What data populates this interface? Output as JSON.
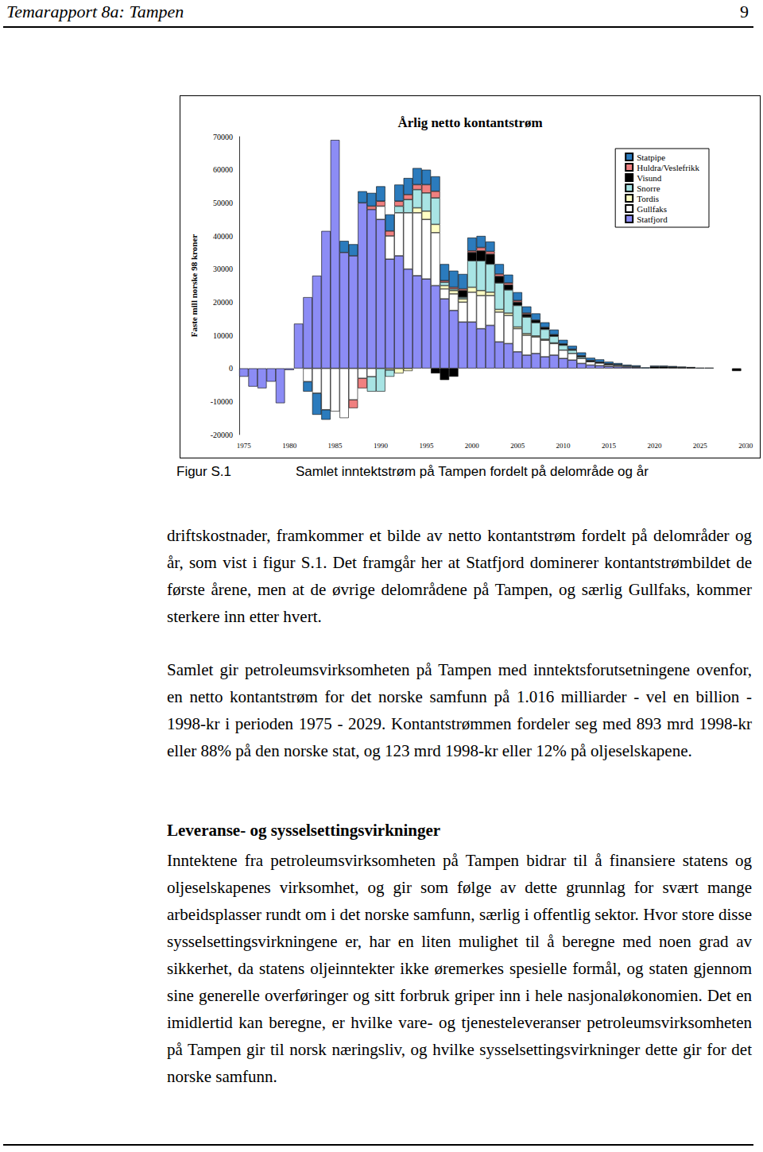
{
  "header": {
    "title": "Temarapport 8a: Tampen",
    "page": "9"
  },
  "chart_data": {
    "type": "bar",
    "title": "Årlig netto kontantstrøm",
    "ylabel": "Faste mill norske 98 kroner",
    "stacked": true,
    "grid": false,
    "legend": "top-right",
    "ylim": [
      -20000,
      70000
    ],
    "yticks": [
      -20000,
      -10000,
      0,
      10000,
      20000,
      30000,
      40000,
      50000,
      60000,
      70000
    ],
    "categories": [
      "1975",
      null,
      null,
      null,
      null,
      "1980",
      null,
      null,
      null,
      null,
      "1985",
      null,
      null,
      null,
      null,
      "1990",
      null,
      null,
      null,
      null,
      "1995",
      null,
      null,
      null,
      null,
      "2000",
      null,
      null,
      null,
      null,
      "2005",
      null,
      null,
      null,
      null,
      "2010",
      null,
      null,
      null,
      null,
      "2015",
      null,
      null,
      null,
      null,
      "2020",
      null,
      null,
      null,
      null,
      "2025",
      null,
      null,
      null,
      null,
      "2030"
    ],
    "series": [
      {
        "name": "Statpipe",
        "color": "#2b7bbd",
        "values": [
          null,
          null,
          null,
          null,
          null,
          null,
          null,
          -3000,
          -6500,
          -3000,
          null,
          3500,
          3500,
          3500,
          4000,
          4500,
          5000,
          5000,
          5000,
          5000,
          4500,
          4500,
          5000,
          5000,
          4500,
          4000,
          3500,
          3000,
          3000,
          2500,
          2500,
          2000,
          2000,
          1500,
          1500,
          1200,
          1000,
          1000,
          800,
          800,
          600,
          500,
          400,
          400,
          300,
          300,
          300,
          300,
          200,
          200,
          200,
          200,
          null,
          null,
          null,
          null
        ]
      },
      {
        "name": "Huldra/Veslefrikk",
        "color": "#f08080",
        "values": [
          null,
          null,
          null,
          null,
          null,
          null,
          null,
          null,
          null,
          null,
          null,
          null,
          -2500,
          -3000,
          1000,
          1500,
          1500,
          1500,
          1500,
          1500,
          2500,
          2000,
          500,
          500,
          500,
          500,
          1000,
          800,
          700,
          600,
          500,
          400,
          null,
          null,
          null,
          null,
          null,
          null,
          null,
          null,
          null,
          null,
          null,
          null,
          null,
          null,
          null,
          null,
          null,
          null,
          null,
          null,
          null,
          null,
          null,
          null
        ]
      },
      {
        "name": "Visund",
        "color": "#000000",
        "values": [
          null,
          null,
          null,
          null,
          null,
          null,
          null,
          null,
          null,
          null,
          null,
          null,
          null,
          null,
          null,
          null,
          null,
          null,
          null,
          null,
          null,
          -1500,
          -3500,
          -2500,
          2000,
          2500,
          3000,
          3000,
          2000,
          1500,
          1000,
          800,
          800,
          600,
          500,
          400,
          300,
          300,
          400,
          300,
          300,
          200,
          null,
          null,
          null,
          500,
          500,
          400,
          300,
          200,
          null,
          null,
          null,
          null,
          -800,
          null
        ]
      },
      {
        "name": "Snorre",
        "color": "#a8e4e4",
        "values": [
          null,
          null,
          null,
          null,
          null,
          null,
          null,
          null,
          null,
          null,
          null,
          null,
          null,
          null,
          -4500,
          -7000,
          -2000,
          2000,
          4000,
          5500,
          5500,
          8000,
          1000,
          500,
          500,
          8000,
          9000,
          8500,
          8000,
          7000,
          6500,
          5000,
          4000,
          3000,
          2000,
          1500,
          1000,
          500,
          null,
          null,
          null,
          null,
          null,
          null,
          null,
          null,
          null,
          null,
          null,
          null,
          null,
          null,
          null,
          null,
          null,
          null
        ]
      },
      {
        "name": "Tordis",
        "color": "#ffffc4",
        "values": [
          null,
          null,
          null,
          null,
          null,
          null,
          null,
          null,
          null,
          null,
          null,
          null,
          null,
          null,
          null,
          null,
          -500,
          -1500,
          -800,
          1500,
          2500,
          2500,
          1000,
          1000,
          1000,
          1500,
          1500,
          1000,
          800,
          700,
          500,
          500,
          300,
          300,
          200,
          null,
          null,
          null,
          null,
          null,
          null,
          null,
          null,
          null,
          null,
          null,
          null,
          null,
          null,
          null,
          null,
          null,
          null,
          null,
          null,
          null
        ]
      },
      {
        "name": "Gullfaks",
        "color": "#ffffff",
        "values": [
          null,
          null,
          null,
          null,
          null,
          null,
          null,
          -4000,
          -7500,
          -12500,
          -13000,
          -15000,
          -9500,
          -3000,
          -2500,
          4000,
          7000,
          13000,
          17000,
          19000,
          18000,
          16000,
          3000,
          5000,
          6000,
          9000,
          10000,
          9000,
          9000,
          8500,
          7000,
          6000,
          5000,
          5000,
          3500,
          2500,
          2000,
          1500,
          1000,
          800,
          500,
          400,
          300,
          200,
          null,
          null,
          null,
          null,
          null,
          null,
          null,
          null,
          null,
          null,
          null,
          null
        ]
      },
      {
        "name": "Statfjord",
        "color": "#8c8cf5",
        "values": [
          -2500,
          -5500,
          -6000,
          -4000,
          -10500,
          -500,
          13500,
          21500,
          28000,
          41500,
          69000,
          35000,
          34000,
          50000,
          48000,
          45000,
          33000,
          34000,
          30000,
          28000,
          27000,
          25000,
          21000,
          17500,
          14000,
          14000,
          12000,
          13000,
          8000,
          7500,
          5000,
          4000,
          4500,
          3500,
          4000,
          3000,
          2500,
          1500,
          1000,
          800,
          600,
          500,
          400,
          300,
          null,
          null,
          null,
          null,
          null,
          null,
          null,
          null,
          null,
          null,
          null,
          null
        ]
      }
    ]
  },
  "figure": {
    "label": "Figur S.1",
    "caption": "Samlet inntektstrøm på Tampen fordelt på delområde og år"
  },
  "paragraphs": [
    "driftskostnader, framkommer et bilde av netto kontantstrøm fordelt på delområder og år, som vist i figur S.1. Det framgår her at Statfjord dominerer kontantstrømbildet de første årene, men at de øvrige delområdene på Tampen, og særlig Gullfaks, kommer sterkere inn etter hvert.",
    "Samlet gir petroleumsvirksomheten på Tampen med inntektsforutsetningene ovenfor, en netto kontantstrøm for det norske samfunn på 1.016 milliarder - vel en billion - 1998-kr i perioden 1975 - 2029. Kontantstrømmen fordeler seg med 893 mrd 1998-kr eller 88% på den norske stat, og 123 mrd 1998-kr eller 12% på oljeselskapene."
  ],
  "section": {
    "heading": "Leveranse- og sysselsettingsvirkninger",
    "text": "Inntektene fra petroleumsvirksomheten på Tampen bidrar til å finansiere statens og oljeselskapenes virksomhet, og gir som følge av dette grunnlag for svært mange arbeidsplasser rundt om i det norske samfunn, særlig i offentlig sektor. Hvor store disse sysselsettingsvirkningene er, har en liten mulighet til å beregne med noen grad av sikkerhet, da statens oljeinntekter ikke øremerkes spesielle formål, og staten gjennom sine generelle overføringer og sitt forbruk griper inn i hele nasjonaløkonomien. Det en imidlertid kan beregne, er hvilke vare- og tjenesteleveranser petroleumsvirksomheten på Tampen gir til norsk næringsliv, og hvilke sysselsettingsvirkninger dette gir for det norske samfunn."
  }
}
